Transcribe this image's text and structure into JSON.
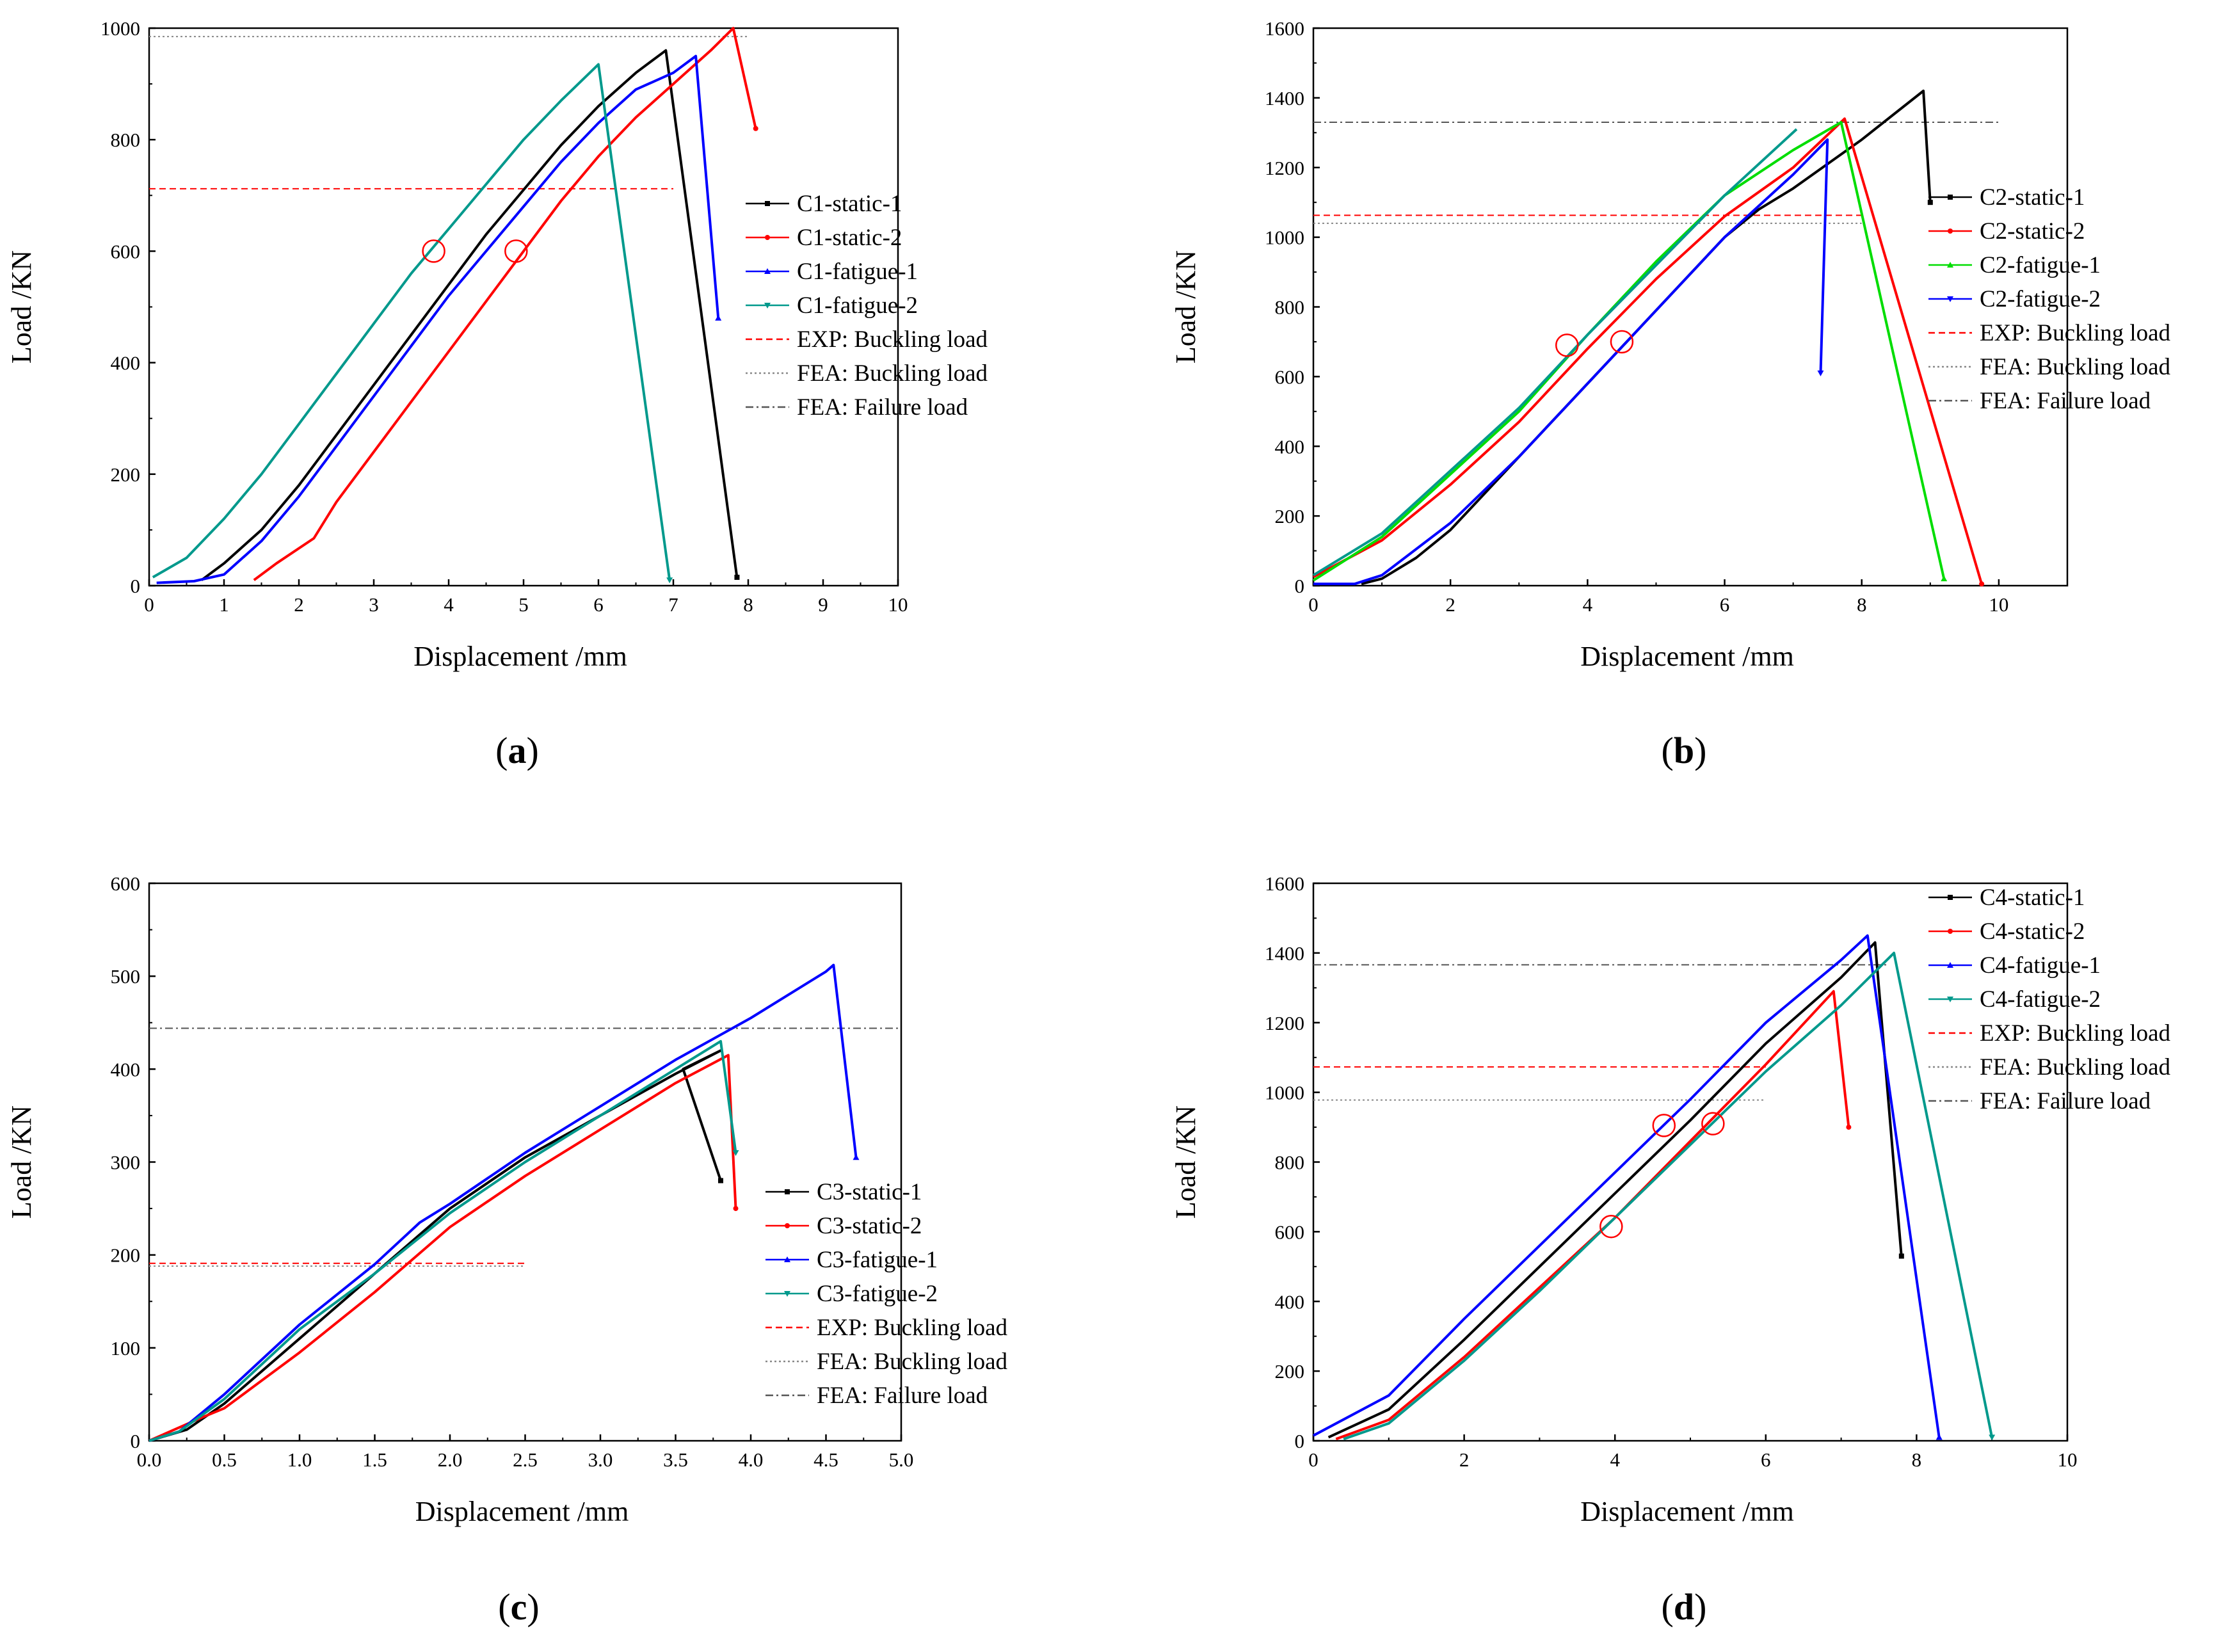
{
  "figure": {
    "panel_labels": [
      "a",
      "b",
      "c",
      "d"
    ]
  },
  "chart_data": [
    {
      "id": "a",
      "type": "line",
      "label": "a",
      "xlabel": "Displacement /mm",
      "ylabel": "Load /KN",
      "xlim": [
        0,
        10
      ],
      "ylim": [
        0,
        1000
      ],
      "xticks": [
        0,
        1,
        2,
        3,
        4,
        5,
        6,
        7,
        8,
        9,
        10
      ],
      "yticks": [
        0,
        200,
        400,
        600,
        800,
        1000
      ],
      "tick_decimals": 0,
      "legend_position": "right",
      "series": [
        {
          "name": "C1-static-1",
          "color": "#000000",
          "style": "solid",
          "marker": "square",
          "x": [
            0.7,
            1.0,
            1.5,
            2.0,
            2.5,
            3.0,
            3.5,
            4.0,
            4.5,
            5.0,
            5.5,
            6.0,
            6.5,
            6.9,
            7.85
          ],
          "y": [
            10,
            40,
            100,
            180,
            270,
            360,
            450,
            540,
            630,
            710,
            790,
            860,
            920,
            960,
            15
          ]
        },
        {
          "name": "C1-static-2",
          "color": "#ff0000",
          "style": "solid",
          "marker": "circle",
          "x": [
            1.4,
            1.7,
            2.2,
            2.5,
            3.0,
            3.5,
            4.0,
            4.5,
            5.0,
            5.5,
            6.0,
            6.5,
            7.0,
            7.5,
            7.8,
            8.1
          ],
          "y": [
            10,
            40,
            85,
            150,
            240,
            330,
            420,
            510,
            600,
            690,
            770,
            840,
            900,
            960,
            1000,
            820
          ]
        },
        {
          "name": "C1-fatigue-1",
          "color": "#0000ff",
          "style": "solid",
          "marker": "triangle-up",
          "x": [
            0.1,
            0.6,
            1.0,
            1.5,
            2.0,
            2.5,
            3.0,
            3.5,
            4.0,
            4.5,
            5.0,
            5.5,
            6.0,
            6.5,
            7.0,
            7.3,
            7.6
          ],
          "y": [
            5,
            8,
            20,
            80,
            160,
            250,
            340,
            430,
            520,
            600,
            680,
            760,
            830,
            890,
            920,
            950,
            480
          ]
        },
        {
          "name": "C1-fatigue-2",
          "color": "#00998c",
          "style": "solid",
          "marker": "triangle-down",
          "x": [
            0.05,
            0.5,
            1.0,
            1.5,
            2.0,
            2.5,
            3.0,
            3.5,
            4.0,
            4.5,
            5.0,
            5.5,
            6.0,
            6.95
          ],
          "y": [
            15,
            50,
            120,
            200,
            290,
            380,
            470,
            560,
            640,
            720,
            800,
            870,
            935,
            10
          ]
        }
      ],
      "reference_lines": [
        {
          "name": "EXP: Buckling load",
          "color": "#ff0000",
          "style": "dashed",
          "value": 712,
          "x_range": [
            0,
            7
          ]
        },
        {
          "name": "FEA: Buckling load",
          "color": "#888888",
          "style": "dotted",
          "value": 985,
          "x_range": [
            0,
            8.0
          ]
        },
        {
          "name": "FEA: Failure load",
          "color": "#555555",
          "style": "dashdot",
          "value": null,
          "x_range": null
        }
      ],
      "annotations": [
        {
          "type": "circle",
          "x": 3.8,
          "y": 600
        },
        {
          "type": "circle",
          "x": 4.9,
          "y": 600
        }
      ]
    },
    {
      "id": "b",
      "type": "line",
      "label": "b",
      "xlabel": "Displacement /mm",
      "ylabel": "Load /KN",
      "xlim": [
        0,
        11
      ],
      "ylim": [
        0,
        1600
      ],
      "xticks": [
        0,
        2,
        4,
        6,
        8,
        10
      ],
      "yticks": [
        0,
        200,
        400,
        600,
        800,
        1000,
        1200,
        1400,
        1600
      ],
      "tick_decimals": 0,
      "legend_position": "right",
      "series": [
        {
          "name": "C2-static-1",
          "color": "#000000",
          "style": "solid",
          "marker": "square",
          "x": [
            0.7,
            1.0,
            1.5,
            2.0,
            3.0,
            4.0,
            5.0,
            6.0,
            6.5,
            7.0,
            8.0,
            8.9,
            9.0
          ],
          "y": [
            5,
            20,
            80,
            160,
            370,
            580,
            790,
            1000,
            1080,
            1140,
            1280,
            1420,
            1100
          ]
        },
        {
          "name": "C2-static-2",
          "color": "#ff0000",
          "style": "solid",
          "marker": "circle",
          "x": [
            0.0,
            1.0,
            2.0,
            3.0,
            4.0,
            5.0,
            6.0,
            7.0,
            7.75,
            9.75
          ],
          "y": [
            25,
            130,
            290,
            470,
            680,
            880,
            1060,
            1200,
            1340,
            5
          ]
        },
        {
          "name": "C2-fatigue-1",
          "color": "#00dd00",
          "style": "solid",
          "marker": "triangle-up",
          "x": [
            0.0,
            1.0,
            2.0,
            3.0,
            4.0,
            5.0,
            6.0,
            7.0,
            7.7,
            9.2
          ],
          "y": [
            15,
            140,
            320,
            500,
            720,
            930,
            1120,
            1250,
            1330,
            20
          ]
        },
        {
          "name": "C2-fatigue-2",
          "color": "#0000ff",
          "style": "solid",
          "marker": "triangle-down",
          "x": [
            0.0,
            0.6,
            1.0,
            2.0,
            3.0,
            4.0,
            5.0,
            6.0,
            7.0,
            7.5,
            7.4
          ],
          "y": [
            5,
            5,
            30,
            180,
            370,
            580,
            790,
            1000,
            1180,
            1280,
            610
          ]
        },
        {
          "name": "C2-fatigue-2 (teal)",
          "color": "#00998c",
          "style": "solid",
          "marker": "none",
          "legend": false,
          "x": [
            0.0,
            1.0,
            2.0,
            3.0,
            4.0,
            5.0,
            6.0,
            7.05
          ],
          "y": [
            30,
            150,
            330,
            510,
            720,
            920,
            1120,
            1310
          ]
        }
      ],
      "reference_lines": [
        {
          "name": "EXP: Buckling load",
          "color": "#ff0000",
          "style": "dashed",
          "value": 1063,
          "x_range": [
            0,
            8.0
          ]
        },
        {
          "name": "FEA: Buckling load",
          "color": "#888888",
          "style": "dotted",
          "value": 1040,
          "x_range": [
            0,
            8.0
          ]
        },
        {
          "name": "FEA: Failure load",
          "color": "#555555",
          "style": "dashdot",
          "value": 1330,
          "x_range": [
            0,
            10.0
          ]
        }
      ],
      "annotations": [
        {
          "type": "circle",
          "x": 3.7,
          "y": 690
        },
        {
          "type": "circle",
          "x": 4.5,
          "y": 700
        }
      ]
    },
    {
      "id": "c",
      "type": "line",
      "label": "c",
      "xlabel": "Displacement /mm",
      "ylabel": "Load /KN",
      "xlim": [
        0,
        5
      ],
      "ylim": [
        0,
        600
      ],
      "xticks": [
        0.0,
        0.5,
        1.0,
        1.5,
        2.0,
        2.5,
        3.0,
        3.5,
        4.0,
        4.5,
        5.0
      ],
      "yticks": [
        0,
        100,
        200,
        300,
        400,
        500,
        600
      ],
      "tick_decimals": 1,
      "legend_position": "bottom-right",
      "series": [
        {
          "name": "C3-static-1",
          "color": "#000000",
          "style": "solid",
          "marker": "square",
          "x": [
            0.0,
            0.25,
            0.5,
            1.0,
            1.5,
            2.0,
            2.5,
            3.0,
            3.5,
            3.8,
            3.55,
            3.8
          ],
          "y": [
            0,
            12,
            40,
            110,
            180,
            250,
            305,
            350,
            395,
            420,
            400,
            280
          ]
        },
        {
          "name": "C3-static-2",
          "color": "#ff0000",
          "style": "solid",
          "marker": "circle",
          "x": [
            0.0,
            0.35,
            0.5,
            1.0,
            1.5,
            2.0,
            2.5,
            3.0,
            3.5,
            3.85,
            3.9
          ],
          "y": [
            0,
            25,
            35,
            95,
            160,
            230,
            285,
            335,
            385,
            415,
            250
          ]
        },
        {
          "name": "C3-fatigue-1",
          "color": "#0000ff",
          "style": "solid",
          "marker": "triangle-up",
          "x": [
            0.0,
            0.2,
            0.5,
            1.0,
            1.5,
            1.8,
            2.0,
            2.5,
            3.0,
            3.5,
            4.0,
            4.5,
            4.55,
            4.7
          ],
          "y": [
            0,
            10,
            50,
            125,
            190,
            235,
            255,
            310,
            360,
            410,
            455,
            505,
            512,
            305
          ]
        },
        {
          "name": "C3-fatigue-2",
          "color": "#00998c",
          "style": "solid",
          "marker": "triangle-down",
          "x": [
            0.0,
            0.2,
            0.5,
            1.0,
            1.5,
            2.0,
            2.5,
            3.0,
            3.5,
            3.8,
            3.9
          ],
          "y": [
            0,
            10,
            45,
            120,
            180,
            245,
            300,
            350,
            400,
            430,
            310
          ]
        }
      ],
      "reference_lines": [
        {
          "name": "EXP: Buckling load",
          "color": "#ff0000",
          "style": "dashed",
          "value": 191,
          "x_range": [
            0,
            2.5
          ]
        },
        {
          "name": "FEA: Buckling load",
          "color": "#888888",
          "style": "dotted",
          "value": 188,
          "x_range": [
            0,
            2.5
          ]
        },
        {
          "name": "FEA: Failure load",
          "color": "#555555",
          "style": "dashdot",
          "value": 444,
          "x_range": [
            0,
            5.0
          ]
        }
      ],
      "annotations": []
    },
    {
      "id": "d",
      "type": "line",
      "label": "d",
      "xlabel": "Displacement /mm",
      "ylabel": "Load /KN",
      "xlim": [
        0,
        10
      ],
      "ylim": [
        0,
        1600
      ],
      "xticks": [
        0,
        2,
        4,
        6,
        8,
        10
      ],
      "yticks": [
        0,
        200,
        400,
        600,
        800,
        1000,
        1200,
        1400,
        1600
      ],
      "tick_decimals": 0,
      "legend_position": "top-right",
      "series": [
        {
          "name": "C4-static-1",
          "color": "#000000",
          "style": "solid",
          "marker": "square",
          "x": [
            0.2,
            1.0,
            2.0,
            3.0,
            4.0,
            5.0,
            6.0,
            7.0,
            7.45,
            7.8
          ],
          "y": [
            10,
            90,
            290,
            500,
            710,
            920,
            1140,
            1330,
            1430,
            530
          ]
        },
        {
          "name": "C4-static-2",
          "color": "#ff0000",
          "style": "solid",
          "marker": "circle",
          "x": [
            0.3,
            1.0,
            2.0,
            3.0,
            4.0,
            5.0,
            6.0,
            6.9,
            7.1
          ],
          "y": [
            5,
            60,
            240,
            440,
            640,
            860,
            1080,
            1290,
            900
          ]
        },
        {
          "name": "C4-fatigue-1",
          "color": "#0000ff",
          "style": "solid",
          "marker": "triangle-up",
          "x": [
            0.0,
            1.0,
            2.0,
            3.0,
            4.0,
            5.0,
            6.0,
            7.0,
            7.35,
            8.3
          ],
          "y": [
            15,
            130,
            350,
            560,
            770,
            980,
            1200,
            1380,
            1450,
            10
          ]
        },
        {
          "name": "C4-fatigue-2",
          "color": "#00998c",
          "style": "solid",
          "marker": "triangle-down",
          "x": [
            0.4,
            1.0,
            2.0,
            3.0,
            4.0,
            5.0,
            6.0,
            7.0,
            7.7,
            9.0
          ],
          "y": [
            5,
            50,
            230,
            430,
            640,
            850,
            1060,
            1250,
            1400,
            10
          ]
        }
      ],
      "reference_lines": [
        {
          "name": "EXP: Buckling load",
          "color": "#ff0000",
          "style": "dashed",
          "value": 1073,
          "x_range": [
            0,
            6.0
          ]
        },
        {
          "name": "FEA: Buckling load",
          "color": "#888888",
          "style": "dotted",
          "value": 978,
          "x_range": [
            0,
            6.0
          ]
        },
        {
          "name": "FEA: Failure load",
          "color": "#555555",
          "style": "dashdot",
          "value": 1366,
          "x_range": [
            0,
            7.6
          ]
        }
      ],
      "annotations": [
        {
          "type": "circle",
          "x": 4.65,
          "y": 905
        },
        {
          "type": "circle",
          "x": 5.3,
          "y": 910
        },
        {
          "type": "circle",
          "x": 3.95,
          "y": 615
        }
      ]
    }
  ]
}
